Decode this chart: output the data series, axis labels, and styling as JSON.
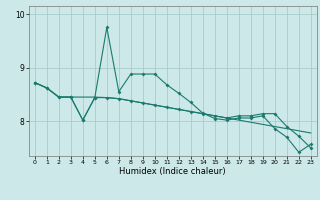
{
  "title": "",
  "xlabel": "Humidex (Indice chaleur)",
  "ylabel": "",
  "background_color": "#cce8e8",
  "grid_color": "#aacccc",
  "line_color": "#1a7a6e",
  "x": [
    0,
    1,
    2,
    3,
    4,
    5,
    6,
    7,
    8,
    9,
    10,
    11,
    12,
    13,
    14,
    15,
    16,
    17,
    18,
    19,
    20,
    21,
    22,
    23
  ],
  "line1": [
    8.72,
    8.62,
    8.45,
    8.45,
    8.45,
    8.45,
    8.44,
    8.42,
    8.38,
    8.34,
    8.3,
    8.26,
    8.22,
    8.18,
    8.14,
    8.1,
    8.06,
    8.02,
    7.98,
    7.94,
    7.9,
    7.86,
    7.82,
    7.78
  ],
  "line2": [
    8.72,
    8.62,
    8.45,
    8.45,
    8.02,
    8.44,
    9.75,
    8.55,
    8.88,
    8.88,
    8.88,
    8.68,
    8.52,
    8.35,
    8.15,
    8.05,
    8.02,
    8.06,
    8.06,
    8.1,
    7.86,
    7.7,
    7.42,
    7.57
  ],
  "line3": [
    8.72,
    8.62,
    8.45,
    8.45,
    8.02,
    8.44,
    8.44,
    8.42,
    8.38,
    8.34,
    8.3,
    8.26,
    8.22,
    8.18,
    8.14,
    8.1,
    8.06,
    8.1,
    8.1,
    8.14,
    8.14,
    7.9,
    7.72,
    7.5
  ],
  "ylim": [
    7.35,
    10.15
  ],
  "yticks": [
    8,
    9,
    10
  ],
  "xlim": [
    -0.5,
    23.5
  ],
  "xticks": [
    0,
    1,
    2,
    3,
    4,
    5,
    6,
    7,
    8,
    9,
    10,
    11,
    12,
    13,
    14,
    15,
    16,
    17,
    18,
    19,
    20,
    21,
    22,
    23
  ],
  "figsize": [
    3.2,
    2.0
  ],
  "dpi": 100
}
